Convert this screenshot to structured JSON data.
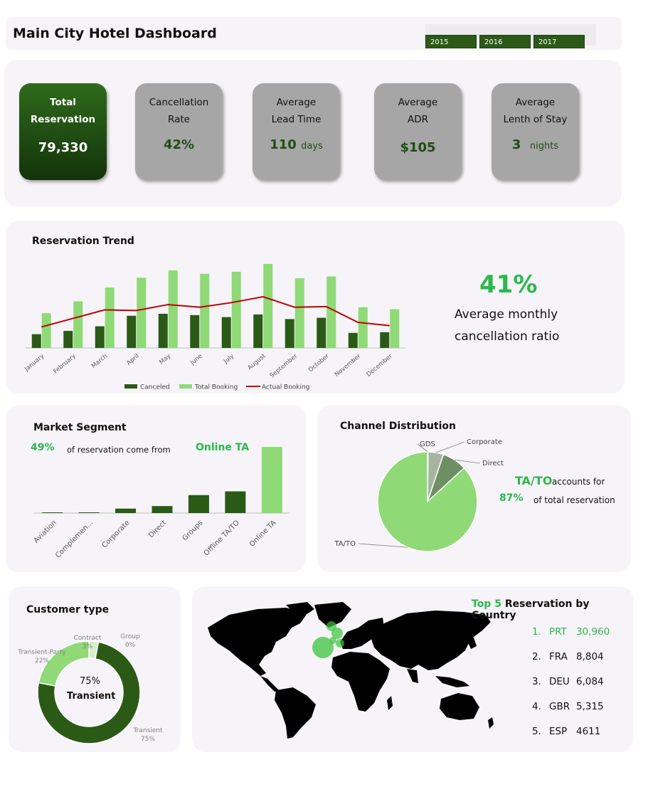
{
  "header": {
    "title": "Main City Hotel Dashboard",
    "years": [
      "2015",
      "2016",
      "2017"
    ]
  },
  "kpis": {
    "total": {
      "label1": "Total",
      "label2": "Reservation",
      "value": "79,330"
    },
    "cancellation": {
      "label1": "Cancellation",
      "label2": "Rate",
      "value": "42%"
    },
    "lead_time": {
      "label1": "Average",
      "label2": "Lead Time",
      "value": "110",
      "unit": "days"
    },
    "adr": {
      "label1": "Average",
      "label2": "ADR",
      "value": "$105"
    },
    "stay": {
      "label1": "Average",
      "label2": "Lenth of Stay",
      "value": "3",
      "unit": "nights"
    }
  },
  "trend": {
    "title": "Reservation Trend",
    "ratio": "41%",
    "ratio_text1": "Average monthly",
    "ratio_text2": "cancellation ratio"
  },
  "segment": {
    "title": "Market Segment",
    "pct": "49%",
    "text": "of reservation come from",
    "highlight": "Online TA"
  },
  "channel": {
    "title": "Channel Distribution",
    "highlight": "TA/TO",
    "text1": "accounts for",
    "pct": "87%",
    "text2": "of total reservation"
  },
  "customer": {
    "title": "Customer type",
    "center_pct": "75%",
    "center_label": "Transient"
  },
  "country": {
    "title_prefix": "Top 5",
    "title_rest": "Reservation by Country",
    "rows": [
      {
        "rank": "1.",
        "code": "PRT",
        "value": "30,960"
      },
      {
        "rank": "2.",
        "code": "FRA",
        "value": "8,804"
      },
      {
        "rank": "3.",
        "code": "DEU",
        "value": "6,084"
      },
      {
        "rank": "4.",
        "code": "GBR",
        "value": "5,315"
      },
      {
        "rank": "5.",
        "code": "ESP",
        "value": "4611"
      }
    ]
  },
  "colors": {
    "dark_green": "#2b5a17",
    "light_green": "#8fd977",
    "accent_green": "#27b84b",
    "red_line": "#c00000",
    "gray_card": "#a6a6a6"
  },
  "chart_data": [
    {
      "type": "bar",
      "categories": [
        "January",
        "February",
        "March",
        "April",
        "May",
        "June",
        "July",
        "August",
        "September",
        "October",
        "November",
        "December"
      ],
      "series": [
        {
          "name": "Canceled",
          "values": [
            1050,
            1300,
            1650,
            2450,
            2600,
            2500,
            2350,
            2550,
            2200,
            2300,
            1150,
            1200
          ]
        },
        {
          "name": "Total Booking",
          "values": [
            2650,
            3550,
            4600,
            5350,
            5900,
            5650,
            5800,
            6400,
            5300,
            5450,
            3100,
            2950
          ]
        },
        {
          "name": "Actual Booking",
          "values": [
            1600,
            2250,
            2900,
            2850,
            3300,
            3100,
            3450,
            3900,
            3100,
            3150,
            1950,
            1700
          ]
        }
      ],
      "series_types": [
        "bar",
        "bar",
        "line"
      ],
      "ylim": [
        0,
        6500
      ]
    },
    {
      "type": "bar",
      "categories": [
        "Aviation",
        "Complemen...",
        "Corporate",
        "Direct",
        "Groups",
        "Offline TA/TO",
        "Online TA"
      ],
      "values": [
        150,
        350,
        2600,
        4100,
        10500,
        12700,
        38700
      ],
      "ylim": [
        0,
        40000
      ]
    },
    {
      "type": "pie",
      "labels": [
        "TA/TO",
        "Direct",
        "Corporate",
        "GDS"
      ],
      "values": [
        87,
        8,
        5,
        0.2
      ]
    },
    {
      "type": "pie",
      "labels": [
        "Transient",
        "Transient-Party",
        "Contract",
        "Group"
      ],
      "values": [
        75,
        22,
        3,
        0
      ],
      "value_labels": [
        "75%",
        "22%",
        "3%",
        "0%"
      ]
    }
  ]
}
